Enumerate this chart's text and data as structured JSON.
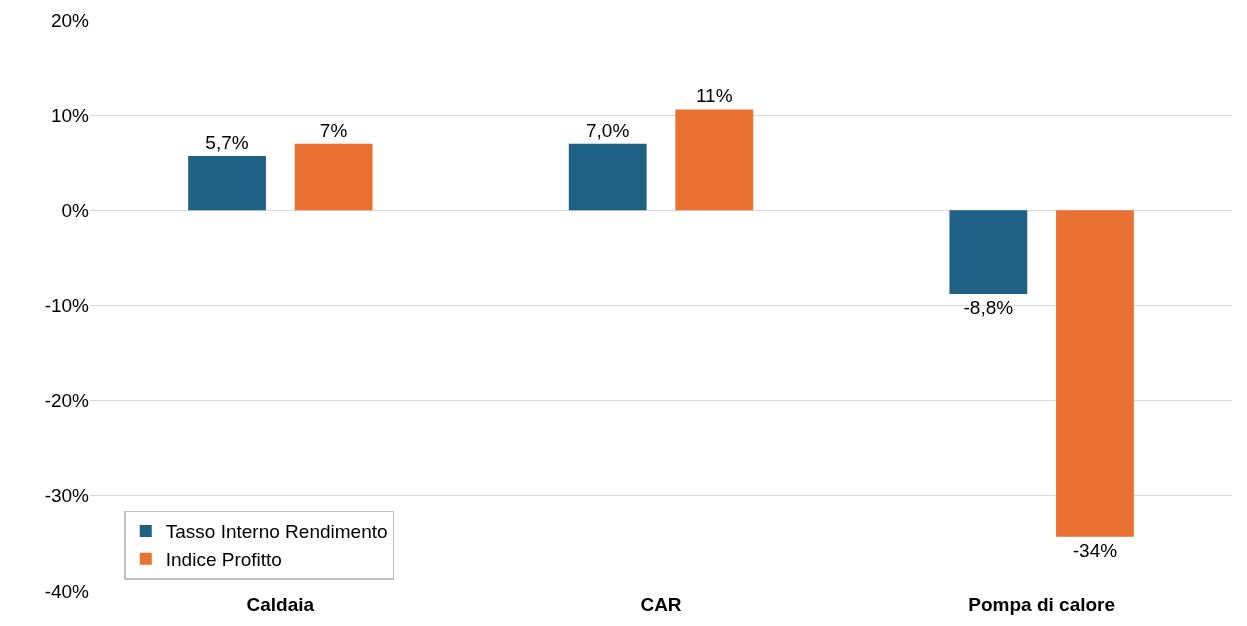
{
  "chart_data": {
    "type": "bar",
    "categories": [
      "Caldaia",
      "CAR",
      "Pompa di calore"
    ],
    "series": [
      {
        "name": "Tasso Interno Rendimento",
        "color": "#1f6185",
        "values": [
          5.7,
          7.0,
          -8.8
        ],
        "value_labels": [
          "5,7%",
          "7,0%",
          "-8,8%"
        ]
      },
      {
        "name": "Indice Profitto",
        "color": "#e97132",
        "values": [
          7.0,
          10.6,
          -34.3
        ],
        "value_labels": [
          "7%",
          "11%",
          "-34%"
        ]
      }
    ],
    "ylim": [
      -40,
      20
    ],
    "yticks": [
      {
        "value": -40,
        "label": "-40%"
      },
      {
        "value": -30,
        "label": "-30%"
      },
      {
        "value": -20,
        "label": "-20%"
      },
      {
        "value": -10,
        "label": "-10%"
      },
      {
        "value": 0,
        "label": "0%"
      },
      {
        "value": 10,
        "label": "10%"
      },
      {
        "value": 20,
        "label": "20%"
      }
    ],
    "grid": "y",
    "legend": "bottom left"
  }
}
